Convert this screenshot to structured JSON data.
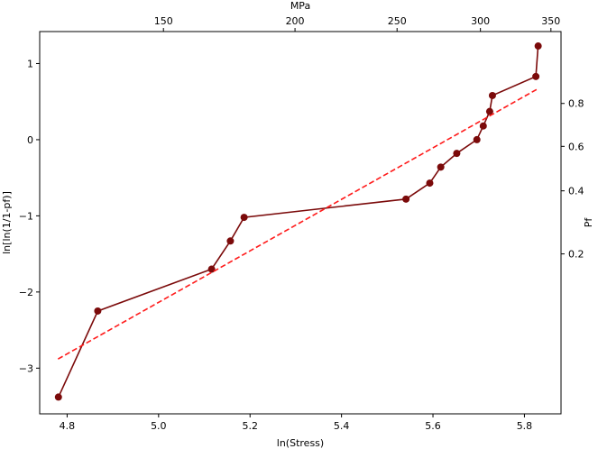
{
  "chart_data": {
    "type": "scatter",
    "title": "",
    "xlabel": "ln(Stress)",
    "ylabel": "ln[ln(1/1-pf)]",
    "top_xlabel": "MPa",
    "right_ylabel": "Pf",
    "xlim": [
      4.74,
      5.88
    ],
    "ylim": [
      -3.6,
      1.42
    ],
    "x_ticks": [
      4.8,
      5.0,
      5.2,
      5.4,
      5.6,
      5.8
    ],
    "x_tick_labels": [
      "4.8",
      "5.0",
      "5.2",
      "5.4",
      "5.6",
      "5.8"
    ],
    "y_ticks": [
      -3,
      -2,
      -1,
      0,
      1
    ],
    "y_tick_labels": [
      "−3",
      "−2",
      "−1",
      "0",
      "1"
    ],
    "top_ticks": [
      150,
      200,
      250,
      300,
      350
    ],
    "top_tick_labels": [
      "150",
      "200",
      "250",
      "300",
      "350"
    ],
    "right_ticks": [
      0.2,
      0.4,
      0.6,
      0.8
    ],
    "right_tick_labels": [
      "0.2",
      "0.4",
      "0.6",
      "0.8"
    ],
    "grid": false,
    "series": [
      {
        "kind": "line-marker",
        "color": "#7b0a0a",
        "x": [
          4.781,
          4.867,
          5.116,
          5.157,
          5.187,
          5.541,
          5.593,
          5.617,
          5.652,
          5.696,
          5.71,
          5.724,
          5.73,
          5.825,
          5.83
        ],
        "y": [
          -3.38,
          -2.25,
          -1.7,
          -1.33,
          -1.02,
          -0.78,
          -0.57,
          -0.36,
          -0.18,
          0.0,
          0.18,
          0.37,
          0.58,
          0.83,
          1.23
        ]
      },
      {
        "kind": "fit-line",
        "color": "#ff1a1a",
        "x": [
          4.78,
          5.83
        ],
        "y": [
          -2.88,
          0.67
        ]
      }
    ]
  }
}
